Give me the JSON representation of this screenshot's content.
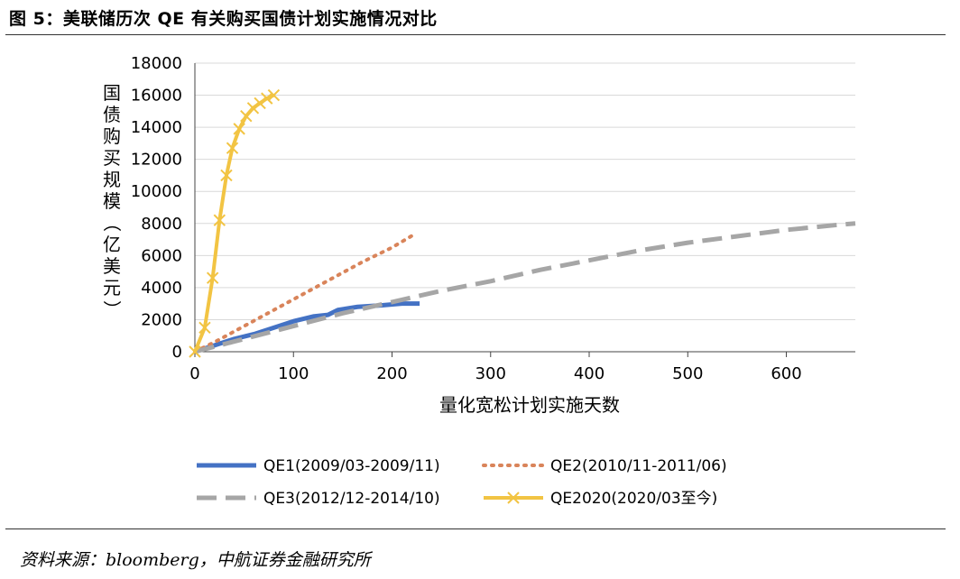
{
  "header": {
    "title": "图 5：美联储历次 QE 有关购买国债计划实施情况对比"
  },
  "footer": {
    "source": "资料来源：bloomberg，中航证券金融研究所"
  },
  "chart_data": {
    "type": "line",
    "title": "",
    "xlabel": "量化宽松计划实施天数",
    "ylabel": "国债购买规模（亿美元）",
    "xlim": [
      0,
      670
    ],
    "ylim": [
      0,
      18000
    ],
    "x_ticks": [
      "0",
      "100",
      "200",
      "300",
      "400",
      "500",
      "600"
    ],
    "y_ticks": [
      "0",
      "2000",
      "4000",
      "6000",
      "8000",
      "10000",
      "12000",
      "14000",
      "16000",
      "18000"
    ],
    "grid": "horizontal",
    "legend_position": "bottom",
    "series": [
      {
        "name": "QE1(2009/03-2009/11)",
        "color": "#4472C4",
        "style": "solid",
        "points": [
          [
            0,
            0
          ],
          [
            20,
            400
          ],
          [
            40,
            800
          ],
          [
            60,
            1100
          ],
          [
            80,
            1500
          ],
          [
            100,
            1900
          ],
          [
            120,
            2200
          ],
          [
            135,
            2300
          ],
          [
            145,
            2600
          ],
          [
            165,
            2800
          ],
          [
            190,
            2900
          ],
          [
            210,
            3000
          ],
          [
            228,
            3000
          ]
        ]
      },
      {
        "name": "QE2(2010/11-2011/06)",
        "color": "#D9845A",
        "style": "dotted",
        "points": [
          [
            0,
            0
          ],
          [
            20,
            600
          ],
          [
            50,
            1600
          ],
          [
            80,
            2600
          ],
          [
            110,
            3600
          ],
          [
            140,
            4600
          ],
          [
            170,
            5600
          ],
          [
            200,
            6500
          ],
          [
            222,
            7300
          ]
        ]
      },
      {
        "name": "QE3(2012/12-2014/10)",
        "color": "#A6A6A6",
        "style": "dashed",
        "points": [
          [
            0,
            0
          ],
          [
            50,
            800
          ],
          [
            100,
            1600
          ],
          [
            150,
            2400
          ],
          [
            200,
            3100
          ],
          [
            250,
            3800
          ],
          [
            300,
            4400
          ],
          [
            350,
            5100
          ],
          [
            400,
            5700
          ],
          [
            450,
            6300
          ],
          [
            500,
            6800
          ],
          [
            550,
            7200
          ],
          [
            600,
            7600
          ],
          [
            650,
            7900
          ],
          [
            670,
            8000
          ]
        ]
      },
      {
        "name": "QE2020(2020/03至今)",
        "color": "#F2C443",
        "style": "solid-x",
        "points": [
          [
            0,
            0
          ],
          [
            10,
            1500
          ],
          [
            18,
            4600
          ],
          [
            25,
            8200
          ],
          [
            32,
            11000
          ],
          [
            38,
            12700
          ],
          [
            45,
            13900
          ],
          [
            52,
            14700
          ],
          [
            59,
            15200
          ],
          [
            66,
            15500
          ],
          [
            73,
            15800
          ],
          [
            80,
            16000
          ]
        ]
      }
    ]
  }
}
